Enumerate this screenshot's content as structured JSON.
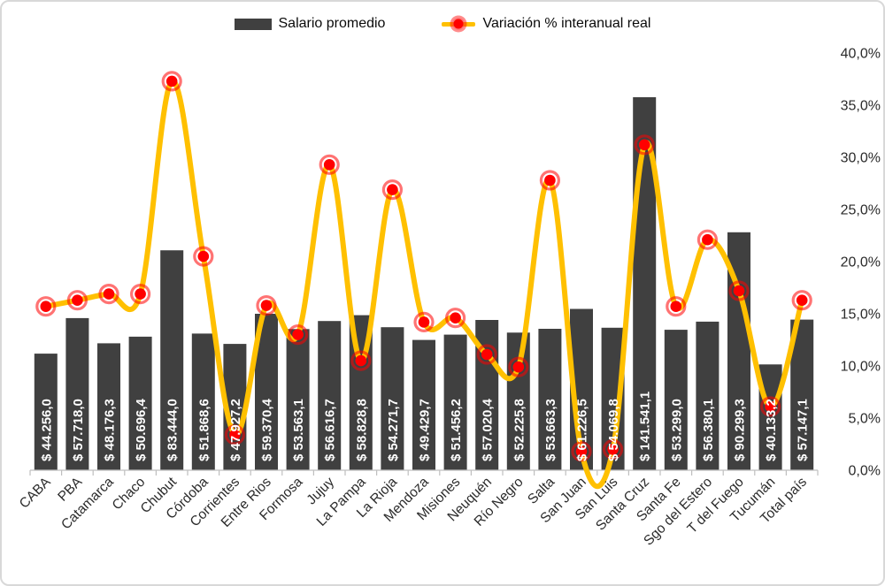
{
  "legend": {
    "bar_label": "Salario promedio",
    "line_label": "Variación % interanual real"
  },
  "colors": {
    "bar": "#404040",
    "line": "#FFC000",
    "marker": "#ff0000",
    "marker_ring": "rgba(255,0,0,0.55)",
    "axis_line": "#bfbfbf",
    "axis_text": "#2b2b2b",
    "bar_label_text": "#ffffff"
  },
  "chart_data": {
    "type": "bar",
    "subtype": "combo bar + smoothed line, secondary percent axis",
    "categories": [
      "CABA",
      "PBA",
      "Catamarca",
      "Chaco",
      "Chubut",
      "Córdoba",
      "Corrientes",
      "Entre Rios",
      "Formosa",
      "Jujuy",
      "La Pampa",
      "La Rioja",
      "Mendoza",
      "Misiones",
      "Neuquén",
      "Río Negro",
      "Salta",
      "San Juan",
      "San Luis",
      "Santa Cruz",
      "Santa Fe",
      "Sgo del Estero",
      "T del Fuego",
      "Tucumán",
      "Total país"
    ],
    "series": [
      {
        "name": "Salario promedio",
        "type": "bar",
        "values": [
          44256.0,
          57718.0,
          48176.3,
          50696.4,
          83444.0,
          51868.6,
          47927.2,
          59370.4,
          53563.1,
          56616.7,
          58828.8,
          54271.7,
          49429.7,
          51456.2,
          57020.4,
          52225.8,
          53663.3,
          61226.5,
          54069.8,
          141541.1,
          53299.0,
          56380.1,
          90299.3,
          40133.2,
          57147.1
        ],
        "labels": [
          "$ 44.256,0",
          "$ 57.718,0",
          "$ 48.176,3",
          "$ 50.696,4",
          "$ 83.444,0",
          "$ 51.868,6",
          "$ 47.927,2",
          "$ 59.370,4",
          "$ 53.563,1",
          "$ 56.616,7",
          "$ 58.828,8",
          "$ 54.271,7",
          "$ 49.429,7",
          "$ 51.456,2",
          "$ 57.020,4",
          "$ 52.225,8",
          "$ 53.663,3",
          "$ 61.226,5",
          "$ 54.069,8",
          "$ 141.541,1",
          "$ 53.299,0",
          "$ 56.380,1",
          "$ 90.299,3",
          "$ 40.133,2",
          "$ 57.147,1"
        ]
      },
      {
        "name": "Variación % interanual real",
        "type": "line",
        "values_pct": [
          15.7,
          16.3,
          16.9,
          16.9,
          37.3,
          20.5,
          3.4,
          15.8,
          13.0,
          29.3,
          10.5,
          26.9,
          14.2,
          14.6,
          11.1,
          9.9,
          27.8,
          1.8,
          2.0,
          31.2,
          15.7,
          22.1,
          17.2,
          6.1,
          16.3
        ],
        "smoothed": true
      }
    ],
    "right_axis": {
      "min": 0,
      "max": 40,
      "step": 5,
      "ticks": [
        "0,0%",
        "5,0%",
        "10,0%",
        "15,0%",
        "20,0%",
        "25,0%",
        "30,0%",
        "35,0%",
        "40,0%"
      ]
    },
    "grid": false,
    "legend_position": "top"
  }
}
